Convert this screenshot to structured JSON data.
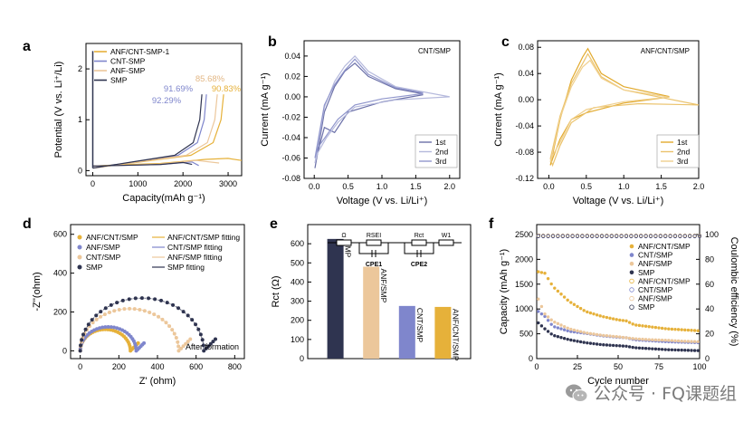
{
  "colors": {
    "ink": "#2f3450",
    "cnt": "#7f86cc",
    "anf": "#ecc79b",
    "full": "#e6b13a",
    "gray": "#8a8a8a"
  },
  "panels": [
    {
      "letter": "a",
      "xlabel": "Capacity(mAh g⁻¹)",
      "ylabel": "Potential (V vs. Li⁺/Li)",
      "xticks": [
        "0",
        "1000",
        "2000",
        "3000"
      ],
      "yticks": [
        "0",
        "1",
        "2"
      ],
      "legend": [
        "ANF/CNT-SMP-1",
        "CNT-SMP",
        "ANF-SMP",
        "SMP"
      ],
      "annotations": [
        "85.68%",
        "91.69%",
        "90.83%",
        "92.29%"
      ]
    },
    {
      "letter": "b",
      "title": "CNT/SMP",
      "xlabel": "Voltage (V vs. Li/Li⁺)",
      "ylabel": "Current (mA g⁻¹)",
      "xticks": [
        "0.0",
        "0.5",
        "1.0",
        "1.5",
        "2.0"
      ],
      "yticks": [
        "0.04",
        "0.02",
        "0.00",
        "-0.02",
        "-0.04",
        "-0.06",
        "-0.08"
      ],
      "legend": [
        "1st",
        "2nd",
        "3rd"
      ]
    },
    {
      "letter": "c",
      "title": "ANF/CNT/SMP",
      "xlabel": "Voltage (V vs. Li/Li⁺)",
      "ylabel": "Current (mA g⁻¹)",
      "xticks": [
        "0.0",
        "0.5",
        "1.0",
        "1.5",
        "2.0"
      ],
      "yticks": [
        "0.08",
        "0.04",
        "0.00",
        "-0.04",
        "-0.08",
        "-0.12"
      ],
      "legend": [
        "1st",
        "2nd",
        "3rd"
      ]
    },
    {
      "letter": "d",
      "xlabel": "Z' (ohm)",
      "ylabel": "-Z''(ohm)",
      "xticks": [
        "0",
        "200",
        "400",
        "600",
        "800"
      ],
      "yticks": [
        "0",
        "200",
        "400",
        "600"
      ],
      "legend_left": [
        "ANF/CNT/SMP",
        "ANF/SMP",
        "CNT/SMP",
        "SMP"
      ],
      "legend_right": [
        "ANF/CNT/SMP fitting",
        "CNT/SMP fitting",
        "ANF/SMP fitting",
        "SMP fitting"
      ],
      "note": "After formation"
    },
    {
      "letter": "e",
      "ylabel": "Rct (Ω)",
      "yticks": [
        "0",
        "100",
        "200",
        "300",
        "400",
        "500",
        "600"
      ],
      "circuit": {
        "r1": "Ω",
        "rsei": "RSEI",
        "rct": "Rct",
        "w1": "W1",
        "cpe1": "CPE1",
        "cpe2": "CPE2"
      }
    },
    {
      "letter": "f",
      "xlabel": "Cycle number",
      "ylabel": "Capacity (mAh g⁻¹)",
      "ylabel2": "Coulombic efficiency (%)",
      "xticks": [
        "0",
        "25",
        "50",
        "75",
        "100"
      ],
      "yticks": [
        "0",
        "500",
        "1000",
        "1500",
        "2000",
        "2500"
      ],
      "yticks2": [
        "0",
        "20",
        "40",
        "60",
        "80",
        "100"
      ],
      "legend": [
        "ANF/CNT/SMP",
        "CNT/SMP",
        "ANF/SMP",
        "SMP",
        "ANF/CNT/SMP",
        "CNT/SMP",
        "ANF/SMP",
        "SMP"
      ]
    }
  ],
  "chart_data": [
    {
      "panel": "a",
      "type": "line",
      "xlabel": "Capacity(mAh g⁻¹)",
      "ylabel": "Potential (V vs. Li⁺/Li)",
      "xlim": [
        -150,
        3300
      ],
      "ylim": [
        -0.1,
        2.5
      ],
      "series": [
        {
          "name": "ANF/CNT-SMP-1",
          "values": [
            [
              0,
              0.09
            ],
            [
              500,
              0.11
            ],
            [
              1500,
              0.14
            ],
            [
              2500,
              0.22
            ],
            [
              3000,
              0.24
            ],
            [
              3300,
              0.2
            ]
          ],
          "charge_cap": 2900
        },
        {
          "name": "CNT-SMP",
          "values": [
            [
              0,
              0.09
            ],
            [
              500,
              0.1
            ],
            [
              1500,
              0.12
            ],
            [
              2200,
              0.17
            ],
            [
              2350,
              0.1
            ]
          ],
          "charge_cap": 2520
        },
        {
          "name": "ANF-SMP",
          "values": [
            [
              0,
              0.09
            ],
            [
              500,
              0.1
            ],
            [
              1500,
              0.13
            ],
            [
              2300,
              0.2
            ],
            [
              2800,
              0.15
            ]
          ],
          "charge_cap": 2760
        },
        {
          "name": "SMP",
          "values": [
            [
              0,
              0.09
            ],
            [
              500,
              0.1
            ],
            [
              1500,
              0.12
            ],
            [
              2000,
              0.16
            ],
            [
              2200,
              0.12
            ]
          ],
          "charge_cap": 2420
        }
      ],
      "annotations": [
        "85.68%",
        "91.69%",
        "90.83%",
        "92.29%"
      ]
    },
    {
      "panel": "b",
      "type": "line",
      "title": "CNT/SMP",
      "xlabel": "Voltage (V vs. Li/Li⁺)",
      "ylabel": "Current (mA g⁻¹)",
      "xlim": [
        -0.15,
        2.15
      ],
      "ylim": [
        -0.08,
        0.055
      ],
      "series": [
        {
          "name": "1st",
          "upper": [
            [
              0.01,
              -0.07
            ],
            [
              0.15,
              -0.015
            ],
            [
              0.3,
              0.01
            ],
            [
              0.45,
              0.025
            ],
            [
              0.6,
              0.033
            ],
            [
              0.8,
              0.02
            ],
            [
              1.2,
              0.008
            ],
            [
              1.6,
              0.003
            ]
          ],
          "lower": [
            [
              1.6,
              0.002
            ],
            [
              1.0,
              -0.005
            ],
            [
              0.5,
              -0.015
            ],
            [
              0.3,
              -0.035
            ],
            [
              0.15,
              -0.03
            ],
            [
              0.05,
              -0.055
            ],
            [
              0.01,
              -0.07
            ]
          ]
        },
        {
          "name": "2nd",
          "upper": [
            [
              0.01,
              -0.065
            ],
            [
              0.15,
              -0.01
            ],
            [
              0.3,
              0.015
            ],
            [
              0.45,
              0.03
            ],
            [
              0.6,
              0.04
            ],
            [
              0.8,
              0.025
            ],
            [
              1.2,
              0.01
            ],
            [
              2.0,
              0.0
            ]
          ],
          "lower": [
            [
              2.0,
              0.0
            ],
            [
              1.2,
              -0.003
            ],
            [
              0.6,
              -0.01
            ],
            [
              0.35,
              -0.025
            ],
            [
              0.18,
              -0.04
            ],
            [
              0.05,
              -0.055
            ],
            [
              0.01,
              -0.065
            ]
          ]
        },
        {
          "name": "3rd",
          "upper": [
            [
              0.01,
              -0.06
            ],
            [
              0.15,
              -0.008
            ],
            [
              0.3,
              0.012
            ],
            [
              0.45,
              0.026
            ],
            [
              0.6,
              0.037
            ],
            [
              0.8,
              0.022
            ],
            [
              1.2,
              0.009
            ],
            [
              1.6,
              0.004
            ]
          ],
          "lower": [
            [
              1.6,
              0.003
            ],
            [
              1.0,
              -0.002
            ],
            [
              0.6,
              -0.008
            ],
            [
              0.35,
              -0.022
            ],
            [
              0.18,
              -0.038
            ],
            [
              0.05,
              -0.05
            ],
            [
              0.01,
              -0.06
            ]
          ]
        }
      ]
    },
    {
      "panel": "c",
      "type": "line",
      "title": "ANF/CNT/SMP",
      "xlabel": "Voltage (V vs. Li/Li⁺)",
      "ylabel": "Current (mA g⁻¹)",
      "xlim": [
        -0.15,
        2.0
      ],
      "ylim": [
        -0.12,
        0.09
      ],
      "series": [
        {
          "name": "1st",
          "upper": [
            [
              0.02,
              -0.1
            ],
            [
              0.15,
              -0.03
            ],
            [
              0.3,
              0.03
            ],
            [
              0.45,
              0.065
            ],
            [
              0.52,
              0.078
            ],
            [
              0.7,
              0.04
            ],
            [
              1.0,
              0.02
            ],
            [
              1.6,
              0.005
            ]
          ],
          "lower": [
            [
              1.6,
              0.004
            ],
            [
              1.0,
              -0.005
            ],
            [
              0.5,
              -0.02
            ],
            [
              0.3,
              -0.03
            ],
            [
              0.15,
              -0.06
            ],
            [
              0.05,
              -0.09
            ],
            [
              0.02,
              -0.1
            ]
          ]
        },
        {
          "name": "2nd",
          "upper": [
            [
              0.02,
              -0.09
            ],
            [
              0.15,
              -0.025
            ],
            [
              0.3,
              0.025
            ],
            [
              0.45,
              0.055
            ],
            [
              0.52,
              0.07
            ],
            [
              0.7,
              0.035
            ],
            [
              1.0,
              0.015
            ],
            [
              2.0,
              -0.008
            ]
          ],
          "lower": [
            [
              2.0,
              -0.008
            ],
            [
              1.2,
              -0.006
            ],
            [
              0.6,
              -0.012
            ],
            [
              0.3,
              -0.035
            ],
            [
              0.15,
              -0.07
            ],
            [
              0.05,
              -0.1
            ],
            [
              0.02,
              -0.09
            ]
          ]
        },
        {
          "name": "3rd",
          "upper": [
            [
              0.02,
              -0.095
            ],
            [
              0.15,
              -0.028
            ],
            [
              0.3,
              0.02
            ],
            [
              0.45,
              0.05
            ],
            [
              0.55,
              0.06
            ],
            [
              0.7,
              0.033
            ],
            [
              1.0,
              0.015
            ],
            [
              1.6,
              0.004
            ]
          ],
          "lower": [
            [
              1.6,
              0.004
            ],
            [
              1.0,
              -0.003
            ],
            [
              0.5,
              -0.015
            ],
            [
              0.3,
              -0.03
            ],
            [
              0.15,
              -0.065
            ],
            [
              0.05,
              -0.085
            ],
            [
              0.02,
              -0.095
            ]
          ]
        }
      ]
    },
    {
      "panel": "d",
      "type": "scatter",
      "xlabel": "Z' (ohm)",
      "ylabel": "-Z''(ohm)",
      "xlim": [
        -50,
        850
      ],
      "ylim": [
        -40,
        650
      ],
      "series": [
        {
          "name": "ANF/CNT/SMP",
          "x0": 0,
          "x1": 260,
          "tail": 40
        },
        {
          "name": "ANF/SMP",
          "x0": 0,
          "x1": 290,
          "tail": 40
        },
        {
          "name": "CNT/SMP",
          "x0": 0,
          "x1": 510,
          "tail": 60
        },
        {
          "name": "SMP",
          "x0": 0,
          "x1": 640,
          "tail": 60
        }
      ]
    },
    {
      "panel": "e",
      "type": "bar",
      "ylabel": "Rct (Ω)",
      "ylim": [
        0,
        700
      ],
      "categories": [
        "SMP",
        "ANF/SMP",
        "CNT/SMP",
        "ANF/CNT/SMP"
      ],
      "values": [
        625,
        480,
        275,
        270
      ]
    },
    {
      "panel": "f",
      "type": "scatter",
      "xlabel": "Cycle number",
      "ylabel": "Capacity (mAh g⁻¹)",
      "ylabel2": "Coulombic efficiency (%)",
      "xlim": [
        0,
        100
      ],
      "ylim": [
        0,
        2700
      ],
      "ylim2": [
        0,
        108
      ],
      "series": [
        {
          "name": "ANF/CNT/SMP",
          "points": [
            [
              1,
              1750
            ],
            [
              5,
              1720
            ],
            [
              10,
              1450
            ],
            [
              20,
              1150
            ],
            [
              30,
              950
            ],
            [
              40,
              850
            ],
            [
              50,
              780
            ],
            [
              55,
              760
            ],
            [
              60,
              680
            ],
            [
              70,
              640
            ],
            [
              80,
              600
            ],
            [
              90,
              580
            ],
            [
              100,
              560
            ]
          ]
        },
        {
          "name": "CNT/SMP",
          "points": [
            [
              1,
              950
            ],
            [
              5,
              850
            ],
            [
              10,
              650
            ],
            [
              20,
              550
            ],
            [
              30,
              510
            ],
            [
              40,
              460
            ],
            [
              50,
              430
            ],
            [
              55,
              420
            ],
            [
              60,
              380
            ],
            [
              70,
              360
            ],
            [
              80,
              340
            ],
            [
              90,
              330
            ],
            [
              100,
              320
            ]
          ]
        },
        {
          "name": "ANF/SMP",
          "points": [
            [
              1,
              1200
            ],
            [
              5,
              900
            ],
            [
              10,
              750
            ],
            [
              20,
              600
            ],
            [
              30,
              520
            ],
            [
              40,
              470
            ],
            [
              50,
              440
            ],
            [
              55,
              420
            ],
            [
              60,
              400
            ],
            [
              70,
              380
            ],
            [
              80,
              370
            ],
            [
              90,
              350
            ],
            [
              100,
              340
            ]
          ]
        },
        {
          "name": "SMP",
          "points": [
            [
              1,
              720
            ],
            [
              5,
              600
            ],
            [
              10,
              470
            ],
            [
              20,
              380
            ],
            [
              30,
              320
            ],
            [
              40,
              280
            ],
            [
              50,
              260
            ],
            [
              55,
              250
            ],
            [
              60,
              220
            ],
            [
              70,
              200
            ],
            [
              80,
              180
            ],
            [
              90,
              170
            ],
            [
              100,
              160
            ]
          ]
        }
      ],
      "efficiency": [
        {
          "name": "ANF/CNT/SMP",
          "value": 99
        },
        {
          "name": "CNT/SMP",
          "value": 98.5
        },
        {
          "name": "ANF/SMP",
          "value": 99.2
        },
        {
          "name": "SMP",
          "value": 98.8
        }
      ]
    }
  ],
  "watermark": "公众号 · FQ课题组"
}
